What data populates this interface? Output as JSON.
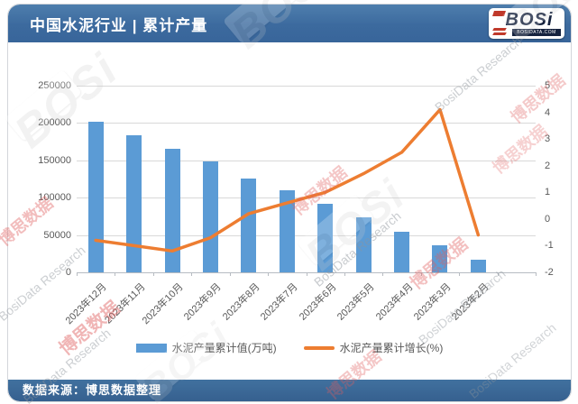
{
  "header": {
    "title": "中国水泥行业 | 累计产量",
    "logo": {
      "name": "BOSi",
      "domain": "BOSIDATA.COM"
    }
  },
  "footer": {
    "source": "数据来源：博思数据整理"
  },
  "watermark": {
    "cn": "博思数据",
    "en": "BosiData Research",
    "logo": "BOSi"
  },
  "colors": {
    "header_blue": "#3C6A9E",
    "bar_blue": "#5B9BD5",
    "line_orange": "#ED7D31",
    "gridline": "#D9D9D9",
    "axis_text": "#595959"
  },
  "chart_data": {
    "type": "bar",
    "subtype": "bar+line dual axis",
    "categories": [
      "2023年12月",
      "2023年11月",
      "2023年10月",
      "2023年9月",
      "2023年8月",
      "2023年7月",
      "2023年6月",
      "2023年5月",
      "2023年4月",
      "2023年3月",
      "2023年2月"
    ],
    "series": [
      {
        "name": "水泥产量累计值(万吨)",
        "type": "bar",
        "axis": "left",
        "color": "#5B9BD5",
        "values": [
          202000,
          184000,
          166000,
          148000,
          126000,
          110000,
          92000,
          74000,
          54000,
          36000,
          17000
        ]
      },
      {
        "name": "水泥产量累计增长(%)",
        "type": "line",
        "axis": "right",
        "color": "#ED7D31",
        "values": [
          -0.8,
          -1.0,
          -1.2,
          -0.7,
          0.2,
          0.6,
          1.0,
          1.7,
          2.5,
          4.1,
          -0.6
        ]
      }
    ],
    "left_axis": {
      "min": 0,
      "max": 250000,
      "ticks": [
        0,
        50000,
        100000,
        150000,
        200000,
        250000
      ]
    },
    "right_axis": {
      "min": -2,
      "max": 5,
      "ticks": [
        -2,
        -1,
        0,
        1,
        2,
        3,
        4,
        5
      ]
    },
    "grid": true,
    "legend_position": "bottom",
    "title": "中国水泥行业 | 累计产量"
  }
}
